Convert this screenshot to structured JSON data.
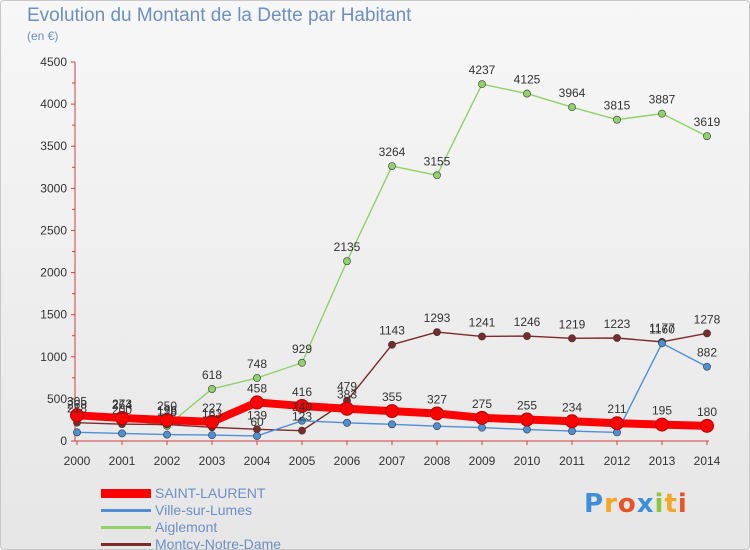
{
  "chart_data": {
    "type": "line",
    "title": "Evolution du Montant de la Dette par Habitant",
    "unit": "(en €)",
    "x": [
      "2000",
      "2001",
      "2002",
      "2003",
      "2004",
      "2005",
      "2006",
      "2007",
      "2008",
      "2009",
      "2010",
      "2011",
      "2012",
      "2013",
      "2014"
    ],
    "ylim": [
      0,
      4500
    ],
    "yticks": [
      0,
      500,
      1000,
      1500,
      2000,
      2500,
      3000,
      3500,
      4000,
      4500
    ],
    "grid": false,
    "legend_position": "bottom-left",
    "series": [
      {
        "name": "Aiglemont",
        "color": "#8fd16a",
        "values": [
          268,
          264,
          178,
          618,
          748,
          929,
          2135,
          3264,
          3155,
          4237,
          4125,
          3964,
          3815,
          3887,
          3619
        ],
        "labels": [
          "268",
          "264",
          "178",
          "618",
          "748",
          "929",
          "2135",
          "3264",
          "3155",
          "4237",
          "4125",
          "3964",
          "3815",
          "3887",
          "3619"
        ]
      },
      {
        "name": "Montcy-Notre-Dame",
        "color": "#7a2b2b",
        "values": [
          218,
          200,
          196,
          163,
          139,
          123,
          479,
          1143,
          1293,
          1241,
          1246,
          1219,
          1223,
          1177,
          1278
        ],
        "labels": [
          "218",
          "200",
          "196",
          "163",
          "139",
          "123",
          "479",
          "1143",
          "1293",
          "1241",
          "1246",
          "1219",
          "1223",
          "1177",
          "1278"
        ]
      },
      {
        "name": "Ville-sur-Lumes",
        "color": "#4f8fd6",
        "values": [
          103,
          90,
          76,
          70,
          60,
          240,
          216,
          198,
          176,
          159,
          136,
          118,
          102,
          1160,
          882
        ],
        "labels": [
          "",
          "",
          "",
          "",
          "60",
          "240",
          "",
          "",
          "",
          "",
          "",
          "",
          "",
          "1160",
          "882"
        ]
      },
      {
        "name": "SAINT-LAURENT",
        "color": "#ff0000",
        "values": [
          305,
          273,
          250,
          227,
          458,
          416,
          383,
          355,
          327,
          275,
          255,
          234,
          211,
          195,
          180
        ],
        "labels": [
          "305",
          "273",
          "250",
          "227",
          "458",
          "416",
          "383",
          "355",
          "327",
          "275",
          "255",
          "234",
          "211",
          "195",
          "180"
        ]
      }
    ]
  },
  "legend": [
    {
      "label": "SAINT-LAURENT",
      "color": "#ff0000"
    },
    {
      "label": "Ville-sur-Lumes",
      "color": "#4f8fd6"
    },
    {
      "label": "Aiglemont",
      "color": "#8fd16a"
    },
    {
      "label": "Montcy-Notre-Dame",
      "color": "#7a2b2b"
    }
  ],
  "logo": [
    "P",
    "r",
    "o",
    "x",
    "i",
    "t",
    "i"
  ]
}
